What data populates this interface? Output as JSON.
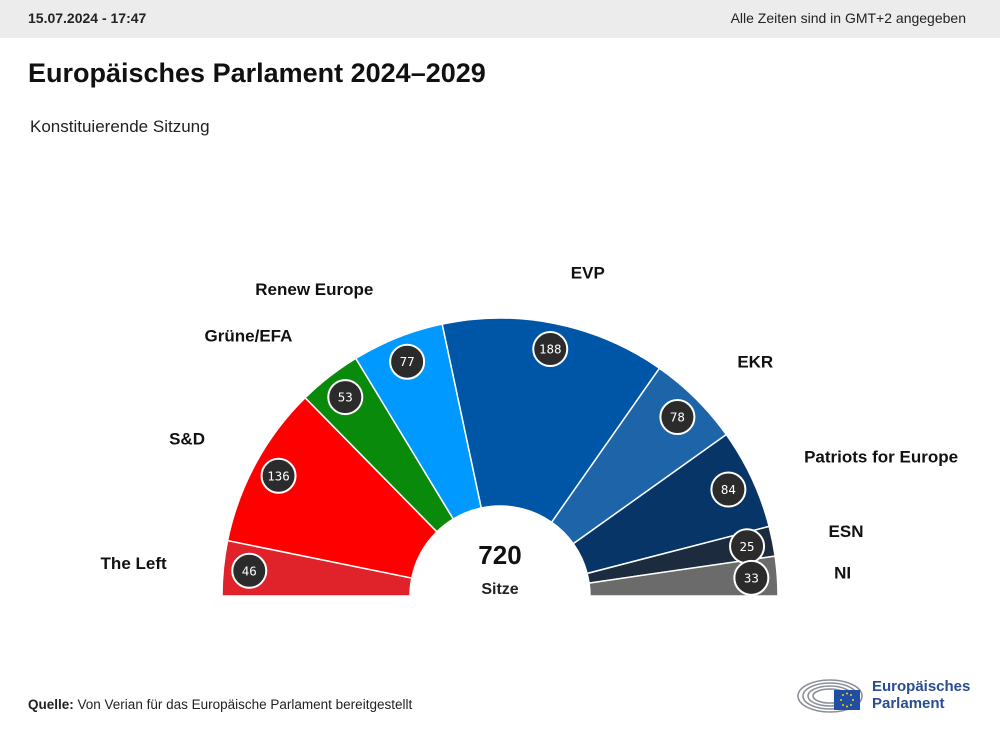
{
  "header": {
    "datetime": "15.07.2024 - 17:47",
    "timezone_note": "Alle Zeiten sind in GMT+2 angegeben"
  },
  "title": "Europäisches Parlament 2024–2029",
  "subtitle": "Konstituierende Sitzung",
  "footer": {
    "source_label": "Quelle:",
    "source_text": " Von Verian für das Europäische Parlament bereitgestellt",
    "logo_line1": "Europäisches",
    "logo_line2": "Parlament"
  },
  "chart_data": {
    "type": "pie",
    "variant": "semicircle-parliament",
    "total": 720,
    "total_label": "Sitze",
    "series": [
      {
        "name": "The Left",
        "value": 46,
        "color": "#e0232a"
      },
      {
        "name": "S&D",
        "value": 136,
        "color": "#ff0000"
      },
      {
        "name": "Grüne/EFA",
        "value": 53,
        "color": "#0a8a0a"
      },
      {
        "name": "Renew Europe",
        "value": 77,
        "color": "#0099ff"
      },
      {
        "name": "EVP",
        "value": 188,
        "color": "#0056a6"
      },
      {
        "name": "EKR",
        "value": 78,
        "color": "#1d65a8"
      },
      {
        "name": "Patriots for Europe",
        "value": 84,
        "color": "#073568"
      },
      {
        "name": "ESN",
        "value": 25,
        "color": "#1d2b3e"
      },
      {
        "name": "NI",
        "value": 33,
        "color": "#6b6b6b"
      }
    ]
  }
}
